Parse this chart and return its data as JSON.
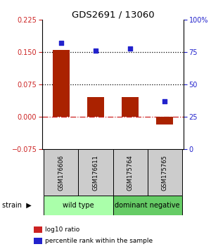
{
  "title": "GDS2691 / 13060",
  "samples": [
    "GSM176606",
    "GSM176611",
    "GSM175764",
    "GSM175765"
  ],
  "log10_ratio": [
    0.155,
    0.047,
    0.047,
    -0.018
  ],
  "percentile_rank": [
    82,
    76,
    78,
    37
  ],
  "bar_color": "#aa2200",
  "dot_color": "#2222cc",
  "ylim_left": [
    -0.075,
    0.225
  ],
  "ylim_right": [
    0,
    100
  ],
  "yticks_left": [
    -0.075,
    0,
    0.075,
    0.15,
    0.225
  ],
  "yticks_right": [
    0,
    25,
    50,
    75,
    100
  ],
  "hlines_dotted": [
    0.075,
    0.15
  ],
  "hline_zero_color": "#cc2222",
  "bar_width": 0.5,
  "group_info": [
    {
      "start": 0,
      "end": 1,
      "label": "wild type",
      "color": "#aaffaa"
    },
    {
      "start": 2,
      "end": 3,
      "label": "dominant negative",
      "color": "#66cc66"
    }
  ],
  "sample_box_color": "#cccccc",
  "strain_label": "strain",
  "legend_items": [
    {
      "color": "#cc2222",
      "label": "log10 ratio"
    },
    {
      "color": "#2222cc",
      "label": "percentile rank within the sample"
    }
  ]
}
